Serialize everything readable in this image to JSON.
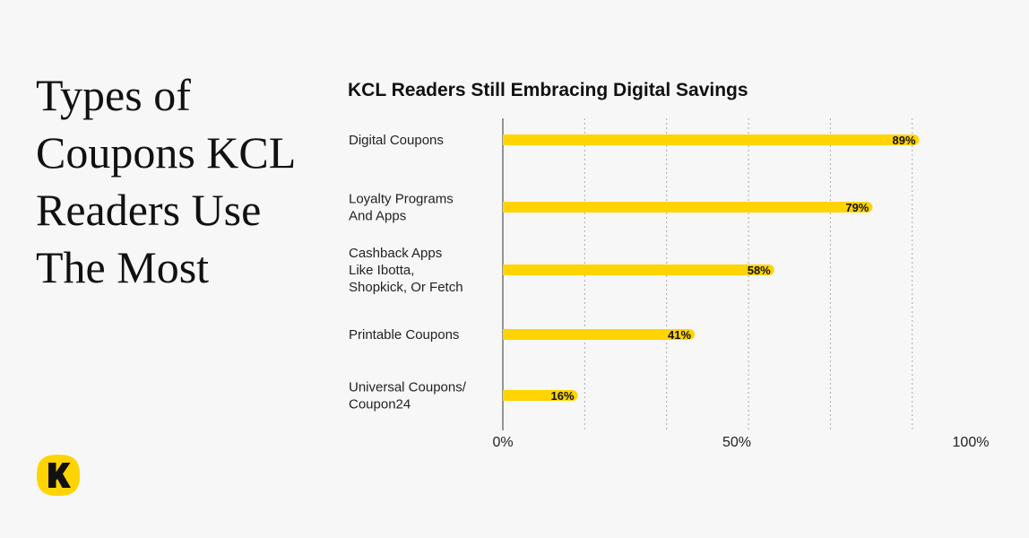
{
  "headline": {
    "line1": "Types of",
    "line2": "Coupons KCL",
    "line3": "Readers Use",
    "line4": "The Most"
  },
  "logo": {
    "icon": "kcl-k-logo-icon",
    "color": "#ffd400"
  },
  "colors": {
    "bar": "#ffd400",
    "background": "#f7f7f7",
    "text": "#111111",
    "grid": "#aaaaaa"
  },
  "chart_data": {
    "type": "bar",
    "orientation": "horizontal",
    "title": "KCL Readers Still Embracing Digital Savings",
    "categories": [
      [
        "Digital Coupons"
      ],
      [
        "Loyalty Programs",
        "And Apps"
      ],
      [
        "Cashback Apps",
        "Like Ibotta,",
        "Shopkick, Or Fetch"
      ],
      [
        "Printable Coupons"
      ],
      [
        "Universal Coupons/",
        "Coupon24"
      ]
    ],
    "values": [
      89,
      79,
      58,
      41,
      16
    ],
    "value_labels": [
      "89%",
      "79%",
      "58%",
      "41%",
      "16%"
    ],
    "xlim": [
      0,
      100
    ],
    "xticks": [
      0,
      50,
      100
    ],
    "xtick_labels": [
      "0%",
      "50%",
      "100%"
    ],
    "grid": true,
    "xlabel": "",
    "ylabel": ""
  }
}
